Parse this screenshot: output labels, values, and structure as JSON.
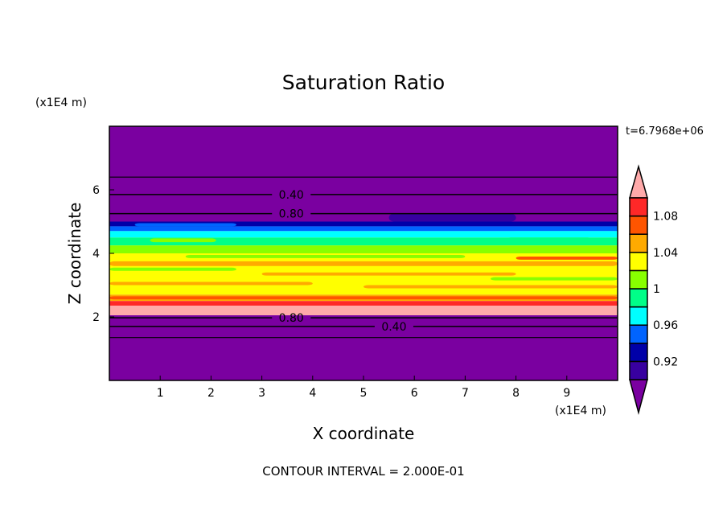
{
  "chart_data": {
    "type": "heatmap",
    "title": "Saturation Ratio",
    "xlabel": "X coordinate",
    "ylabel": "Z coordinate",
    "x_unit": "(x1E4 m)",
    "y_unit": "(x1E4 m)",
    "xlim": [
      0,
      10
    ],
    "ylim": [
      0,
      8
    ],
    "x_ticks": [
      1,
      2,
      3,
      4,
      5,
      6,
      7,
      8,
      9
    ],
    "y_ticks": [
      2,
      4,
      6
    ],
    "time_label": "t=6.7968e+06",
    "footer": "CONTOUR INTERVAL = 2.000E-01",
    "colorbar": {
      "levels": [
        0.9,
        0.92,
        0.94,
        0.96,
        0.98,
        1.0,
        1.02,
        1.04,
        1.06,
        1.08,
        1.1
      ],
      "tick_labels": [
        "1.08",
        "1.04",
        "1",
        "0.96",
        "0.92"
      ],
      "tick_values": [
        1.08,
        1.04,
        1.0,
        0.96,
        0.92
      ],
      "colors": [
        "#7a00a0",
        "#3800a0",
        "#0000a8",
        "#0064ff",
        "#00ffff",
        "#00ff88",
        "#88ff00",
        "#ffff00",
        "#ffaa00",
        "#ff5500",
        "#ff2828",
        "#ffaaaa"
      ],
      "extend": "both"
    },
    "bands": [
      {
        "z": [
          5.0,
          8.0
        ],
        "color": "#7a00a0"
      },
      {
        "z": [
          4.85,
          5.0
        ],
        "color": "#0000a8"
      },
      {
        "z": [
          4.7,
          4.85
        ],
        "color": "#0064ff"
      },
      {
        "z": [
          4.5,
          4.7
        ],
        "color": "#00ffff"
      },
      {
        "z": [
          4.25,
          4.5
        ],
        "color": "#00ff88"
      },
      {
        "z": [
          4.0,
          4.25
        ],
        "color": "#88ff00"
      },
      {
        "z": [
          2.7,
          4.0
        ],
        "color": "#ffff00"
      },
      {
        "z": [
          2.5,
          2.7
        ],
        "color": "#ffaa00"
      },
      {
        "z": [
          2.35,
          2.5
        ],
        "color": "#ff2828"
      },
      {
        "z": [
          2.05,
          2.35
        ],
        "color": "#ffaaaa"
      },
      {
        "z": [
          0.0,
          2.05
        ],
        "color": "#7a00a0"
      }
    ],
    "patches": [
      {
        "x": [
          0,
          10
        ],
        "z": [
          3.6,
          3.75
        ],
        "color": "#ffaa00"
      },
      {
        "x": [
          3,
          8
        ],
        "z": [
          3.3,
          3.4
        ],
        "color": "#ffaa00"
      },
      {
        "x": [
          0,
          4
        ],
        "z": [
          3.0,
          3.1
        ],
        "color": "#ffaa00"
      },
      {
        "x": [
          5,
          10
        ],
        "z": [
          2.9,
          3.0
        ],
        "color": "#ffaa00"
      },
      {
        "x": [
          1.5,
          7
        ],
        "z": [
          3.85,
          3.95
        ],
        "color": "#88ff00"
      },
      {
        "x": [
          0,
          2.5
        ],
        "z": [
          3.45,
          3.55
        ],
        "color": "#88ff00"
      },
      {
        "x": [
          7.5,
          10
        ],
        "z": [
          3.15,
          3.25
        ],
        "color": "#88ff00"
      },
      {
        "x": [
          8,
          10
        ],
        "z": [
          3.8,
          3.9
        ],
        "color": "#ff5500"
      },
      {
        "x": [
          0,
          10
        ],
        "z": [
          2.55,
          2.65
        ],
        "color": "#ff5500"
      },
      {
        "x": [
          7.8,
          9.5
        ],
        "z": [
          4.35,
          4.5
        ],
        "color": "#00ff88"
      },
      {
        "x": [
          0.8,
          2.1
        ],
        "z": [
          4.35,
          4.47
        ],
        "color": "#88ff00"
      },
      {
        "x": [
          7.9,
          10
        ],
        "z": [
          4.55,
          4.7
        ],
        "color": "#00ffff"
      },
      {
        "x": [
          5.5,
          8
        ],
        "z": [
          5.0,
          5.25
        ],
        "color": "#3800a0"
      },
      {
        "x": [
          0.5,
          2.5
        ],
        "z": [
          4.85,
          4.95
        ],
        "color": "#0064ff"
      }
    ],
    "contours": [
      {
        "level": "",
        "z": 6.4
      },
      {
        "level": "0.40",
        "z": 5.85
      },
      {
        "level": "0.80",
        "z": 5.25
      },
      {
        "level": "0.80",
        "z": 1.97
      },
      {
        "level": "0.40",
        "z": 1.7
      },
      {
        "level": "",
        "z": 1.35
      }
    ]
  }
}
